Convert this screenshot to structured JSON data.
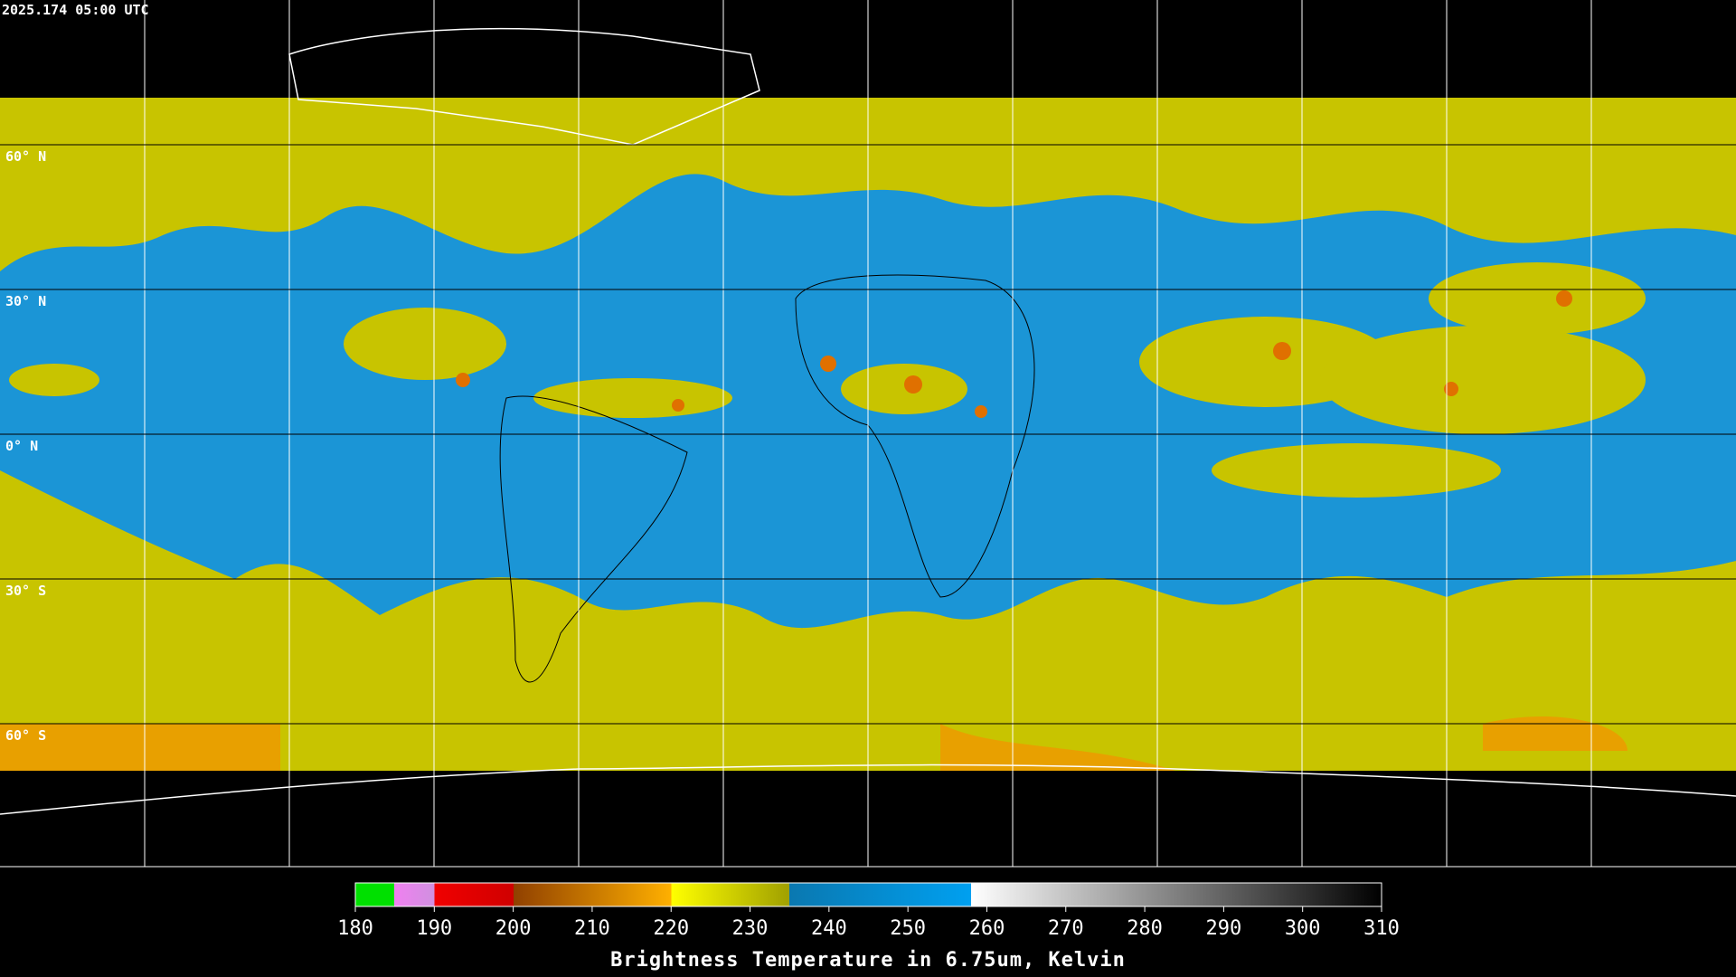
{
  "header": {
    "timestamp": "2025.174 05:00 UTC"
  },
  "map": {
    "latitude_labels": [
      "60° N",
      "30° N",
      "0° N",
      "30° S",
      "60° S"
    ]
  },
  "colorbar": {
    "label": "Brightness Temperature in 6.75um, Kelvin",
    "range": [
      180,
      310
    ],
    "ticks": [
      180,
      190,
      200,
      210,
      220,
      230,
      240,
      250,
      260,
      270,
      280,
      290,
      300,
      310
    ]
  }
}
